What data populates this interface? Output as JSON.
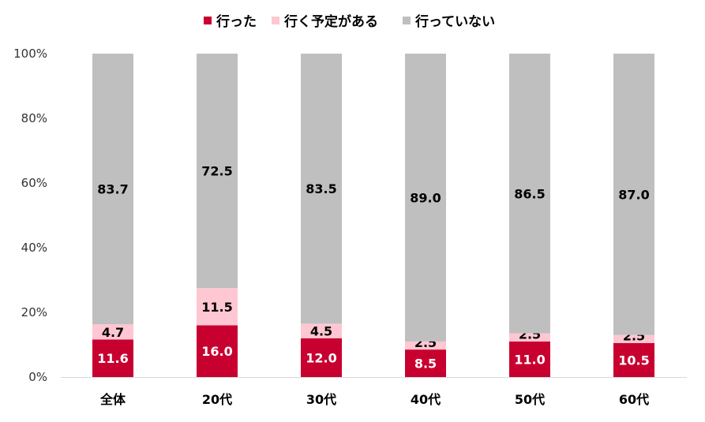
{
  "chart_data": {
    "type": "bar",
    "stacked": true,
    "categories": [
      "全体",
      "20代",
      "30代",
      "40代",
      "50代",
      "60代"
    ],
    "series": [
      {
        "name": "行った",
        "color": "#c8002f",
        "label_color": "#ffffff",
        "values": [
          11.6,
          16.0,
          12.0,
          8.5,
          11.0,
          10.5
        ]
      },
      {
        "name": "行く予定がある",
        "color": "#ffc7d2",
        "label_color": "#000000",
        "values": [
          4.7,
          11.5,
          4.5,
          2.5,
          2.5,
          2.5
        ]
      },
      {
        "name": "行っていない",
        "color": "#bfbfbf",
        "label_color": "#000000",
        "values": [
          83.7,
          72.5,
          83.5,
          89.0,
          86.5,
          87.0
        ]
      }
    ],
    "y_ticks": [
      "0%",
      "20%",
      "40%",
      "60%",
      "80%",
      "100%"
    ],
    "ylim": [
      0,
      100
    ],
    "legend_position": "top",
    "grid": false
  }
}
